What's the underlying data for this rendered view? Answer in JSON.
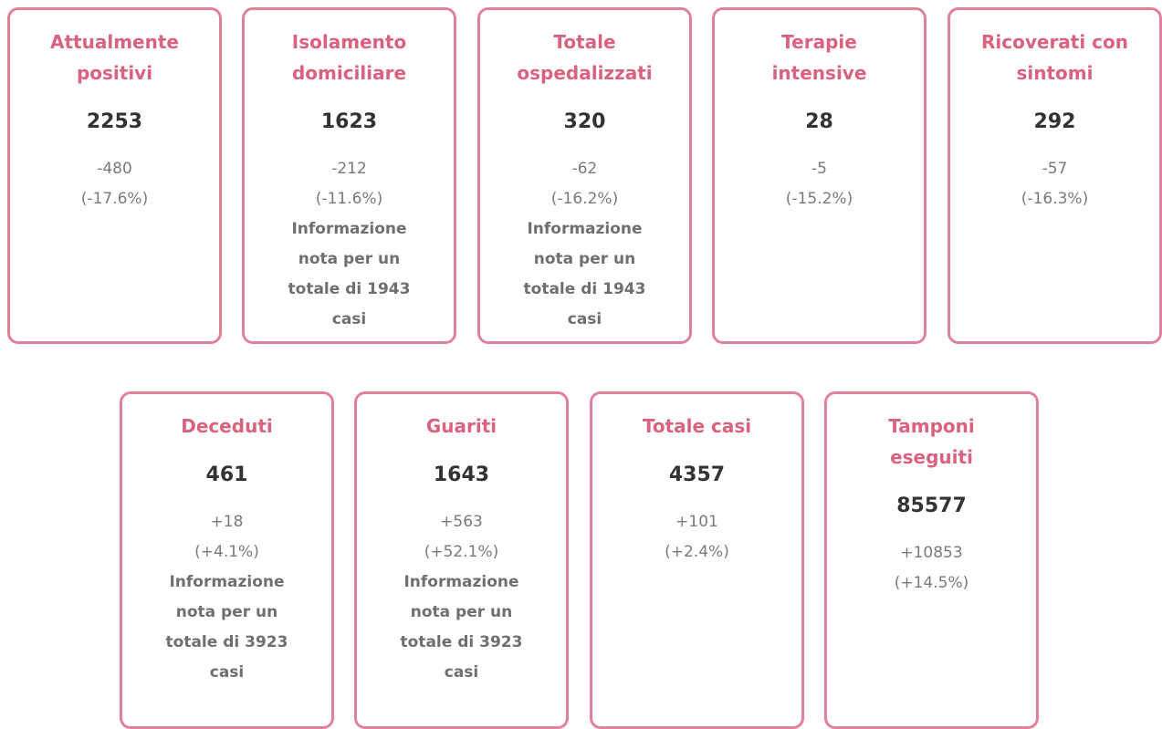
{
  "cards": [
    {
      "title": "Attualmente positivi",
      "value": 2253,
      "change": "-480",
      "percent": "(-17.6%)"
    },
    {
      "title": "Isolamento domiciliare",
      "value": 1623,
      "change": "-212",
      "percent": "(-11.6%)",
      "note": "Informazione nota per un totale di 1943 casi"
    },
    {
      "title": "Totale ospedalizzati",
      "value": 320,
      "change": "-62",
      "percent": "(-16.2%)",
      "note": "Informazione nota per un totale di 1943 casi"
    },
    {
      "title": "Terapie intensive",
      "value": 28,
      "change": "-5",
      "percent": "(-15.2%)"
    },
    {
      "title": "Ricoverati con sintomi",
      "value": 292,
      "change": "-57",
      "percent": "(-16.3%)"
    },
    {
      "title": "Deceduti",
      "value": 461,
      "change": "+18",
      "percent": "(+4.1%)",
      "note": "Informazione nota per un totale di 3923 casi"
    },
    {
      "title": "Guariti",
      "value": 1643,
      "change": "+563",
      "percent": "(+52.1%)",
      "note": "Informazione nota per un totale di 3923 casi"
    },
    {
      "title": "Totale casi",
      "value": 4357,
      "change": "+101",
      "percent": "(+2.4%)"
    },
    {
      "title": "Tamponi eseguiti",
      "value": 85577,
      "change": "+10853",
      "percent": "(+14.5%)"
    }
  ]
}
